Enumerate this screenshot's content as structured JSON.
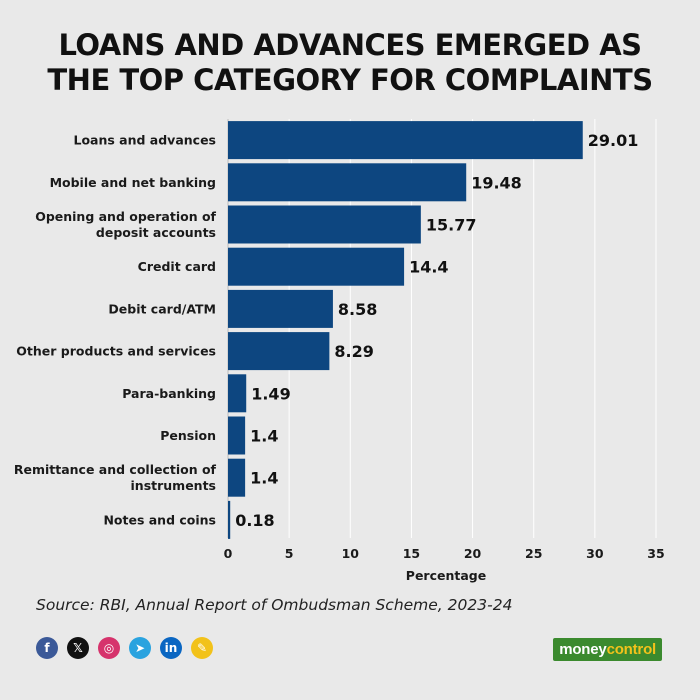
{
  "title": {
    "line1": "LOANS AND ADVANCES EMERGED AS",
    "line2": "THE TOP CATEGORY FOR COMPLAINTS"
  },
  "source": "Source: RBI, Annual Report of Ombudsman Scheme, 2023-24",
  "social": [
    {
      "name": "facebook-icon",
      "glyph": "f",
      "color": "#3b5998"
    },
    {
      "name": "x-icon",
      "glyph": "𝕏",
      "color": "#111111"
    },
    {
      "name": "instagram-icon",
      "glyph": "◎",
      "color": "#d6336c"
    },
    {
      "name": "telegram-icon",
      "glyph": "➤",
      "color": "#2aa3df"
    },
    {
      "name": "linkedin-icon",
      "glyph": "in",
      "color": "#0a66c2"
    },
    {
      "name": "sharechat-icon",
      "glyph": "✎",
      "color": "#f2c21a"
    }
  ],
  "brand": {
    "part1": "money",
    "part2": "control"
  },
  "colors": {
    "bar": "#0d4680",
    "background": "#e9e9e9"
  },
  "chart_data": {
    "type": "bar",
    "orientation": "horizontal",
    "categories": [
      [
        "Loans and advances"
      ],
      [
        "Mobile and net banking"
      ],
      [
        "Opening and operation of",
        "deposit accounts"
      ],
      [
        "Credit card"
      ],
      [
        "Debit card/ATM"
      ],
      [
        "Other products and services"
      ],
      [
        "Para-banking"
      ],
      [
        "Pension"
      ],
      [
        "Remittance and collection of",
        "instruments"
      ],
      [
        "Notes and coins"
      ]
    ],
    "values": [
      29.01,
      19.48,
      15.77,
      14.4,
      8.58,
      8.29,
      1.49,
      1.4,
      1.4,
      0.18
    ],
    "value_labels": [
      "29.01",
      "19.48",
      "15.77",
      "14.4",
      "8.58",
      "8.29",
      "1.49",
      "1.4",
      "1.4",
      "0.18"
    ],
    "xlabel": "Percentage",
    "xlim": [
      0,
      35
    ],
    "xticks": [
      0,
      5,
      10,
      15,
      20,
      25,
      30,
      35
    ],
    "grid": true
  }
}
